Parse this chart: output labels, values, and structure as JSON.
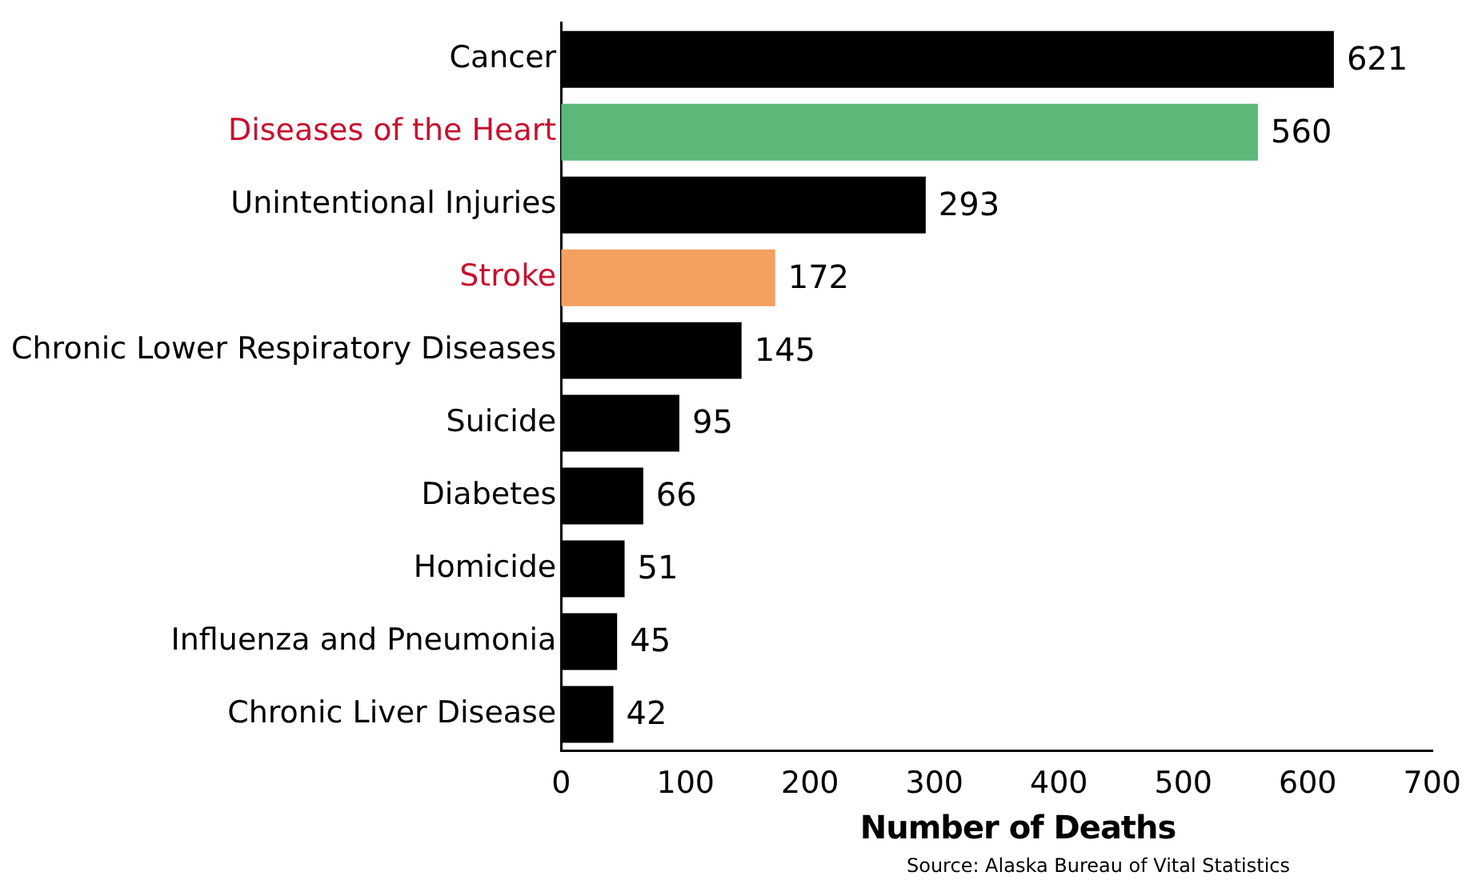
{
  "chart_data": {
    "type": "bar",
    "orientation": "horizontal",
    "categories": [
      "Cancer",
      "Diseases of the Heart",
      "Unintentional Injuries",
      "Stroke",
      "Chronic Lower Respiratory Diseases",
      "Suicide",
      "Diabetes",
      "Homicide",
      "Influenza and Pneumonia",
      "Chronic Liver Disease"
    ],
    "values": [
      621,
      560,
      293,
      172,
      145,
      95,
      66,
      51,
      45,
      42
    ],
    "colors": [
      "#000000",
      "#5cb878",
      "#000000",
      "#f4a060",
      "#000000",
      "#000000",
      "#000000",
      "#000000",
      "#000000",
      "#000000"
    ],
    "xlim": [
      0,
      700
    ],
    "xticks": [
      0,
      100,
      200,
      300,
      400,
      500,
      600,
      700
    ],
    "grid": false,
    "legend": false,
    "data_labels": true,
    "xlabel": "Number of Deaths",
    "annotations": [
      "Source:  Alaska Bureau of Vital Statistics"
    ]
  }
}
